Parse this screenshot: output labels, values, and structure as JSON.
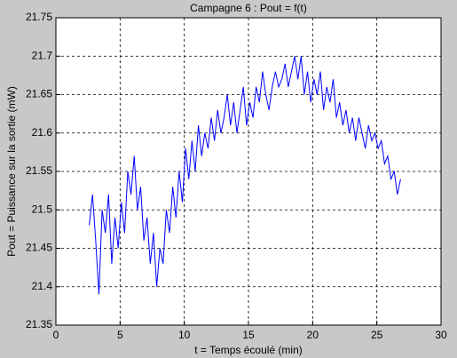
{
  "chart_data": {
    "type": "line",
    "title": "Campagne 6 : Pout = f(t)",
    "x_label": "t = Temps écoulé (min)",
    "y_label": "Pout = Puissance sur la sortie (mW)",
    "xlim": [
      0,
      30
    ],
    "xticks": [
      0,
      5,
      10,
      15,
      20,
      25,
      30
    ],
    "ylim": [
      21.35,
      21.75
    ],
    "yticks": [
      21.35,
      21.4,
      21.45,
      21.5,
      21.55,
      21.6,
      21.65,
      21.7,
      21.75
    ],
    "grid": true,
    "x": [
      2.6,
      2.85,
      3.1,
      3.35,
      3.6,
      3.85,
      4.1,
      4.35,
      4.6,
      4.85,
      5.1,
      5.35,
      5.6,
      5.85,
      6.1,
      6.35,
      6.6,
      6.85,
      7.1,
      7.35,
      7.6,
      7.85,
      8.1,
      8.35,
      8.6,
      8.85,
      9.1,
      9.35,
      9.6,
      9.85,
      10.1,
      10.35,
      10.6,
      10.85,
      11.1,
      11.35,
      11.6,
      11.85,
      12.1,
      12.35,
      12.6,
      12.85,
      13.1,
      13.35,
      13.6,
      13.85,
      14.1,
      14.35,
      14.6,
      14.85,
      15.1,
      15.35,
      15.6,
      15.85,
      16.1,
      16.35,
      16.6,
      16.85,
      17.1,
      17.35,
      17.6,
      17.85,
      18.1,
      18.35,
      18.6,
      18.85,
      19.1,
      19.35,
      19.6,
      19.85,
      20.1,
      20.35,
      20.6,
      20.85,
      21.1,
      21.35,
      21.6,
      21.85,
      22.1,
      22.35,
      22.6,
      22.85,
      23.1,
      23.35,
      23.6,
      23.85,
      24.1,
      24.35,
      24.6,
      24.85,
      25.1,
      25.35,
      25.6,
      25.85,
      26.1,
      26.35,
      26.6,
      26.85
    ],
    "series": [
      {
        "color": "#0000ff",
        "values": [
          21.48,
          21.52,
          21.46,
          21.39,
          21.5,
          21.47,
          21.52,
          21.43,
          21.49,
          21.45,
          21.51,
          21.47,
          21.55,
          21.52,
          21.57,
          21.5,
          21.53,
          21.46,
          21.49,
          21.43,
          21.47,
          21.4,
          21.45,
          21.43,
          21.5,
          21.47,
          21.53,
          21.49,
          21.55,
          21.51,
          21.58,
          21.54,
          21.59,
          21.55,
          21.61,
          21.57,
          21.6,
          21.58,
          21.62,
          21.59,
          21.63,
          21.6,
          21.62,
          21.65,
          21.61,
          21.64,
          21.6,
          21.63,
          21.66,
          21.61,
          21.64,
          21.62,
          21.66,
          21.64,
          21.68,
          21.65,
          21.63,
          21.66,
          21.68,
          21.66,
          21.67,
          21.69,
          21.66,
          21.68,
          21.7,
          21.67,
          21.7,
          21.65,
          21.68,
          21.64,
          21.67,
          21.65,
          21.68,
          21.63,
          21.66,
          21.64,
          21.67,
          21.62,
          21.64,
          21.61,
          21.63,
          21.6,
          21.62,
          21.59,
          21.62,
          21.6,
          21.58,
          21.61,
          21.59,
          21.6,
          21.58,
          21.59,
          21.56,
          21.57,
          21.54,
          21.55,
          21.52,
          21.54
        ]
      }
    ]
  }
}
